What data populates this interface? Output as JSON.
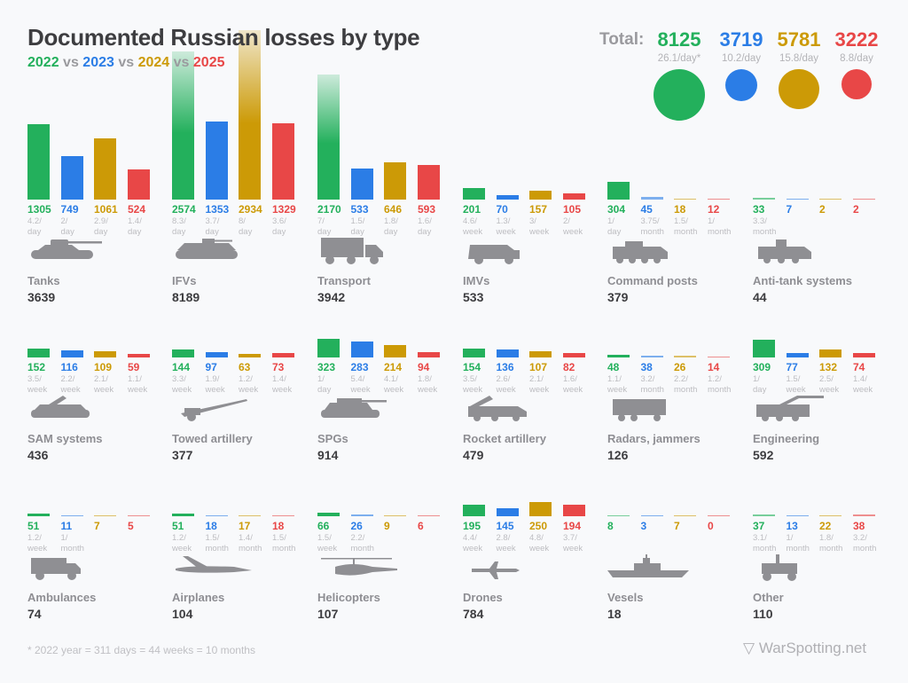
{
  "title": "Documented Russian losses by type",
  "subtitle": {
    "years": [
      "2022",
      "2023",
      "2024",
      "2025"
    ],
    "separator": "vs"
  },
  "colors": [
    "#23b05c",
    "#2b7de6",
    "#cc9a06",
    "#e84747"
  ],
  "totals": {
    "label": "Total:",
    "values": [
      "8125",
      "3719",
      "5781",
      "3222"
    ],
    "rates": [
      "26.1/day*",
      "10.2/day",
      "15.8/day",
      "8.8/day"
    ],
    "per_day": [
      26.1,
      10.2,
      15.8,
      8.8
    ]
  },
  "chart_data": {
    "type": "bar",
    "series_names": [
      "2022",
      "2023",
      "2024",
      "2025"
    ],
    "categories": [
      {
        "name": "Tanks",
        "total": "3639",
        "icon": "tank-icon",
        "values": [
          1305,
          749,
          1061,
          524
        ],
        "rates": [
          [
            "4.2/",
            "day"
          ],
          [
            "2/",
            "day"
          ],
          [
            "2.9/",
            "day"
          ],
          [
            "1.4/",
            "day"
          ]
        ]
      },
      {
        "name": "IFVs",
        "total": "8189",
        "icon": "ifv-icon",
        "values": [
          2574,
          1353,
          2934,
          1329
        ],
        "rates": [
          [
            "8.3/",
            "day"
          ],
          [
            "3.7/",
            "day"
          ],
          [
            "8/",
            "day"
          ],
          [
            "3.6/",
            "day"
          ]
        ]
      },
      {
        "name": "Transport",
        "total": "3942",
        "icon": "truck-icon",
        "values": [
          2170,
          533,
          646,
          593
        ],
        "rates": [
          [
            "7/",
            "day"
          ],
          [
            "1.5/",
            "day"
          ],
          [
            "1.8/",
            "day"
          ],
          [
            "1.6/",
            "day"
          ]
        ]
      },
      {
        "name": "IMVs",
        "total": "533",
        "icon": "imv-icon",
        "values": [
          201,
          70,
          157,
          105
        ],
        "rates": [
          [
            "4.6/",
            "week"
          ],
          [
            "1.3/",
            "week"
          ],
          [
            "3/",
            "week"
          ],
          [
            "2/",
            "week"
          ]
        ]
      },
      {
        "name": "Command posts",
        "total": "379",
        "icon": "command-post-icon",
        "values": [
          304,
          45,
          18,
          12
        ],
        "rates": [
          [
            "1/",
            "day"
          ],
          [
            "3.75/",
            "month"
          ],
          [
            "1.5/",
            "month"
          ],
          [
            "1/",
            "month"
          ]
        ]
      },
      {
        "name": "Anti-tank systems",
        "total": "44",
        "icon": "anti-tank-icon",
        "values": [
          33,
          7,
          2,
          2
        ],
        "rates": [
          [
            "3.3/",
            "month"
          ],
          null,
          null,
          null
        ]
      },
      {
        "name": "SAM systems",
        "total": "436",
        "icon": "sam-icon",
        "values": [
          152,
          116,
          109,
          59
        ],
        "rates": [
          [
            "3.5/",
            "week"
          ],
          [
            "2.2/",
            "week"
          ],
          [
            "2.1/",
            "week"
          ],
          [
            "1.1/",
            "week"
          ]
        ]
      },
      {
        "name": "Towed artillery",
        "total": "377",
        "icon": "towed-artillery-icon",
        "values": [
          144,
          97,
          63,
          73
        ],
        "rates": [
          [
            "3.3/",
            "week"
          ],
          [
            "1.9/",
            "week"
          ],
          [
            "1.2/",
            "week"
          ],
          [
            "1.4/",
            "week"
          ]
        ]
      },
      {
        "name": "SPGs",
        "total": "914",
        "icon": "spg-icon",
        "values": [
          323,
          283,
          214,
          94
        ],
        "rates": [
          [
            "1/",
            "day"
          ],
          [
            "5.4/",
            "week"
          ],
          [
            "4.1/",
            "week"
          ],
          [
            "1.8/",
            "week"
          ]
        ]
      },
      {
        "name": "Rocket artillery",
        "total": "479",
        "icon": "rocket-artillery-icon",
        "values": [
          154,
          136,
          107,
          82
        ],
        "rates": [
          [
            "3.5/",
            "week"
          ],
          [
            "2.6/",
            "week"
          ],
          [
            "2.1/",
            "week"
          ],
          [
            "1.6/",
            "week"
          ]
        ]
      },
      {
        "name": "Radars, jammers",
        "total": "126",
        "icon": "radar-icon",
        "values": [
          48,
          38,
          26,
          14
        ],
        "rates": [
          [
            "1.1/",
            "week"
          ],
          [
            "3.2/",
            "month"
          ],
          [
            "2.2/",
            "month"
          ],
          [
            "1.2/",
            "month"
          ]
        ]
      },
      {
        "name": "Engineering",
        "total": "592",
        "icon": "engineering-icon",
        "values": [
          309,
          77,
          132,
          74
        ],
        "rates": [
          [
            "1/",
            "day"
          ],
          [
            "1.5/",
            "week"
          ],
          [
            "2.5/",
            "week"
          ],
          [
            "1.4/",
            "week"
          ]
        ]
      },
      {
        "name": "Ambulances",
        "total": "74",
        "icon": "ambulance-icon",
        "values": [
          51,
          11,
          7,
          5
        ],
        "rates": [
          [
            "1.2/",
            "week"
          ],
          [
            "1/",
            "month"
          ],
          null,
          null
        ]
      },
      {
        "name": "Airplanes",
        "total": "104",
        "icon": "airplane-icon",
        "values": [
          51,
          18,
          17,
          18
        ],
        "rates": [
          [
            "1.2/",
            "week"
          ],
          [
            "1.5/",
            "month"
          ],
          [
            "1.4/",
            "month"
          ],
          [
            "1.5/",
            "month"
          ]
        ]
      },
      {
        "name": "Helicopters",
        "total": "107",
        "icon": "helicopter-icon",
        "values": [
          66,
          26,
          9,
          6
        ],
        "rates": [
          [
            "1.5/",
            "week"
          ],
          [
            "2.2/",
            "month"
          ],
          null,
          null
        ]
      },
      {
        "name": "Drones",
        "total": "784",
        "icon": "drone-icon",
        "values": [
          195,
          145,
          250,
          194
        ],
        "rates": [
          [
            "4.4/",
            "week"
          ],
          [
            "2.8/",
            "week"
          ],
          [
            "4.8/",
            "week"
          ],
          [
            "3.7/",
            "week"
          ]
        ]
      },
      {
        "name": "Vesels",
        "total": "18",
        "icon": "vessel-icon",
        "values": [
          8,
          3,
          7,
          0
        ],
        "rates": [
          null,
          null,
          null,
          null
        ]
      },
      {
        "name": "Other",
        "total": "110",
        "icon": "other-icon",
        "values": [
          37,
          13,
          22,
          38
        ],
        "rates": [
          [
            "3.1/",
            "month"
          ],
          [
            "1/",
            "month"
          ],
          [
            "1.8/",
            "month"
          ],
          [
            "3.2/",
            "month"
          ]
        ]
      }
    ]
  },
  "footnote": "* 2022 year = 311 days = 44 weeks = 10 months",
  "logo": "WarSpotting.net"
}
